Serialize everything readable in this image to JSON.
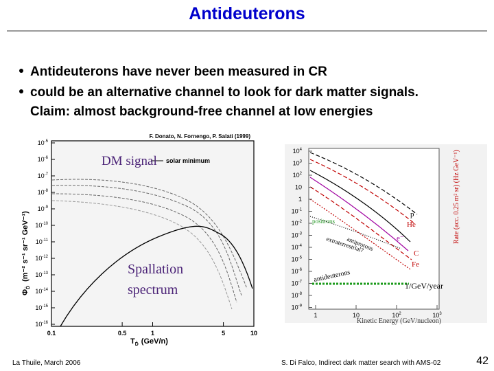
{
  "title": "Antideuterons",
  "bullets": [
    "Antideuterons have never been measured in CR",
    "could be an alternative channel to look for dark matter signals."
  ],
  "claim": "Claim: almost background-free channel at low energies",
  "left_plot": {
    "credit": "F. Donato, N. Fornengo, P. Salati (1999)",
    "legend": "solar minimum",
    "dm_label": "DM signal",
    "spallation_label": [
      "Spallation",
      "spectrum"
    ],
    "xlabel": "T",
    "xlabel_sub": "D̄",
    "xlabel_unit": "(GeV/n)",
    "ylabel": "Φ",
    "ylabel_sub": "D̄",
    "ylabel_unit": "(m⁻² s⁻¹ sr⁻¹ GeV⁻¹)",
    "yticks": [
      {
        "b": "10",
        "e": "-5"
      },
      {
        "b": "10",
        "e": "-6"
      },
      {
        "b": "10",
        "e": "-7"
      },
      {
        "b": "10",
        "e": "-8"
      },
      {
        "b": "10",
        "e": "-9"
      },
      {
        "b": "10",
        "e": "-10"
      },
      {
        "b": "10",
        "e": "-11"
      },
      {
        "b": "10",
        "e": "-12"
      },
      {
        "b": "10",
        "e": "-13"
      },
      {
        "b": "10",
        "e": "-14"
      },
      {
        "b": "10",
        "e": "-15"
      },
      {
        "b": "10",
        "e": "-16"
      }
    ],
    "xticks": [
      "0.1",
      "0.5",
      "1",
      "5",
      "10"
    ]
  },
  "right_plot": {
    "yticks": [
      {
        "b": "10",
        "e": "4"
      },
      {
        "b": "10",
        "e": "3"
      },
      {
        "b": "10",
        "e": "2"
      },
      {
        "b": "10",
        "e": ""
      },
      {
        "b": "1",
        "e": ""
      },
      {
        "b": "10",
        "e": "-1"
      },
      {
        "b": "10",
        "e": "-2"
      },
      {
        "b": "10",
        "e": "-3"
      },
      {
        "b": "10",
        "e": "-4"
      },
      {
        "b": "10",
        "e": "-5"
      },
      {
        "b": "10",
        "e": "-6"
      },
      {
        "b": "10",
        "e": "-7"
      },
      {
        "b": "10",
        "e": "-8"
      },
      {
        "b": "10",
        "e": "-9"
      }
    ],
    "xticks": [
      {
        "b": "1",
        "e": ""
      },
      {
        "b": "10",
        "e": ""
      },
      {
        "b": "10",
        "e": "2"
      },
      {
        "b": "10",
        "e": "3"
      }
    ],
    "xlabel": "Kinetic Energy (GeV/nucleon)",
    "ylabel": "Rate (acc. 0.25 m² sr) (Hz GeV⁻¹)",
    "curves": [
      "p",
      "He",
      "e⁻",
      "C",
      "Fe"
    ],
    "antiprotons": "antiprotons",
    "positrons": "positrons",
    "antideuterons": "antideuterons",
    "extraterrestrial": "extraterrestrial?",
    "rate": "1/GeV/year"
  },
  "footer": {
    "left": "La Thuile, March 2006",
    "center": "S. Di Falco, Indirect dark matter search with AMS-02",
    "page": "42"
  }
}
